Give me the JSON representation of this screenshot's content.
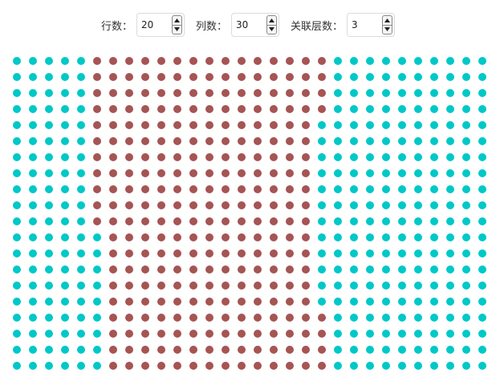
{
  "controls": {
    "rows": {
      "label": "行数：",
      "value": "20"
    },
    "cols": {
      "label": "列数：",
      "value": "30"
    },
    "layers": {
      "label": "关联层数：",
      "value": "3"
    }
  },
  "grid": {
    "rows": 20,
    "cols": 30,
    "colors": {
      "base": "#00c8c8",
      "highlight": "#a65454"
    },
    "highlight_ranges": [
      [
        5,
        19
      ],
      [
        5,
        19
      ],
      [
        5,
        19
      ],
      [
        5,
        19
      ],
      [
        5,
        18
      ],
      [
        5,
        18
      ],
      [
        5,
        18
      ],
      [
        5,
        18
      ],
      [
        5,
        18
      ],
      [
        5,
        18
      ],
      [
        5,
        18
      ],
      [
        6,
        18
      ],
      [
        6,
        18
      ],
      [
        6,
        18
      ],
      [
        6,
        18
      ],
      [
        6,
        18
      ],
      [
        6,
        19
      ],
      [
        6,
        19
      ],
      [
        6,
        19
      ],
      [
        6,
        19
      ]
    ]
  }
}
